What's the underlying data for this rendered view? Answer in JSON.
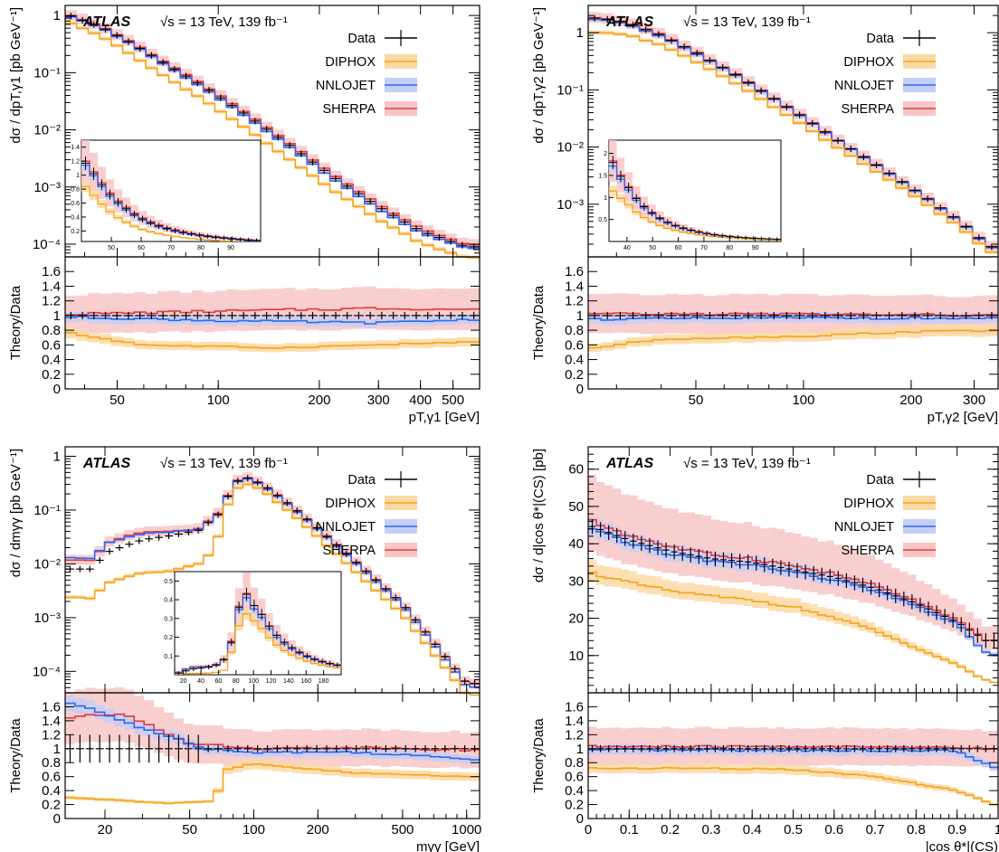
{
  "chart_data": [
    {
      "type": "line",
      "title": "",
      "atlas_label": "ATLAS",
      "energy_label": "√s = 13 TeV, 139 fb⁻¹",
      "ylabel": "dσ / dp_{T,γ1} [pb GeV⁻¹]",
      "xlabel": "p_{T,γ1} [GeV]",
      "ratio_ylabel": "Theory/Data",
      "xscale": "log",
      "yscale": "log",
      "xlim": [
        35,
        600
      ],
      "ylim": [
        6e-05,
        1.5
      ],
      "ratio_ylim": [
        0,
        1.8
      ],
      "legend_position": "top-right",
      "legend": [
        "Data",
        "DIPHOX",
        "NNLOJET",
        "SHERPA"
      ],
      "xticks": [
        {
          "v": 50,
          "t": "50"
        },
        {
          "v": 100,
          "t": "100"
        },
        {
          "v": 200,
          "t": "200"
        },
        {
          "v": 300,
          "t": "300"
        },
        {
          "v": 400,
          "t": "400"
        },
        {
          "v": 500,
          "t": "500"
        }
      ],
      "yticks": [
        {
          "v": 1,
          "t": "1"
        },
        {
          "v": 0.1,
          "t": "10⁻¹"
        },
        {
          "v": 0.01,
          "t": "10⁻²"
        },
        {
          "v": 0.001,
          "t": "10⁻³"
        },
        {
          "v": 0.0001,
          "t": "10⁻⁴"
        }
      ],
      "ratio_yticks": [
        "0",
        "0.2",
        "0.4",
        "0.6",
        "0.8",
        "1",
        "1.2",
        "1.4",
        "1.6"
      ],
      "data_points": [
        [
          36,
          1.0
        ],
        [
          45,
          0.62
        ],
        [
          55,
          0.33
        ],
        [
          70,
          0.14
        ],
        [
          90,
          0.058
        ],
        [
          120,
          0.019
        ],
        [
          160,
          0.0058
        ],
        [
          220,
          0.0015
        ],
        [
          300,
          0.00045
        ],
        [
          400,
          0.00017
        ],
        [
          550,
          9e-05
        ]
      ],
      "ratio_series": {
        "DIPHOX": [
          [
            36,
            0.76
          ],
          [
            60,
            0.6
          ],
          [
            150,
            0.56
          ],
          [
            400,
            0.62
          ],
          [
            600,
            0.64
          ]
        ],
        "NNLOJET": [
          [
            36,
            0.98
          ],
          [
            100,
            0.93
          ],
          [
            300,
            0.9
          ],
          [
            600,
            0.95
          ]
        ],
        "SHERPA": [
          [
            36,
            1.02
          ],
          [
            100,
            1.06
          ],
          [
            300,
            1.1
          ],
          [
            600,
            1.08
          ]
        ]
      },
      "inset": {
        "xlim": [
          40,
          100
        ],
        "ylim": [
          0.05,
          1.5
        ],
        "xticks": [
          "50",
          "60",
          "70",
          "80",
          "90"
        ],
        "yticks": [
          "0.2",
          "0.4",
          "0.6",
          "0.8",
          "1",
          "1.2",
          "1.4"
        ]
      }
    },
    {
      "type": "line",
      "title": "",
      "atlas_label": "ATLAS",
      "energy_label": "√s = 13 TeV, 139 fb⁻¹",
      "ylabel": "dσ / dp_{T,γ2} [pb GeV⁻¹]",
      "xlabel": "p_{T,γ2} [GeV]",
      "ratio_ylabel": "Theory/Data",
      "xscale": "log",
      "yscale": "log",
      "xlim": [
        25,
        350
      ],
      "ylim": [
        0.00012,
        3
      ],
      "ratio_ylim": [
        0,
        1.8
      ],
      "legend_position": "top-right",
      "legend": [
        "Data",
        "DIPHOX",
        "NNLOJET",
        "SHERPA"
      ],
      "xticks": [
        {
          "v": 50,
          "t": "50"
        },
        {
          "v": 100,
          "t": "100"
        },
        {
          "v": 200,
          "t": "200"
        },
        {
          "v": 300,
          "t": "300"
        }
      ],
      "yticks": [
        {
          "v": 1,
          "t": "1"
        },
        {
          "v": 0.1,
          "t": "10⁻¹"
        },
        {
          "v": 0.01,
          "t": "10⁻²"
        },
        {
          "v": 0.001,
          "t": "10⁻³"
        }
      ],
      "ratio_yticks": [
        "0",
        "0.2",
        "0.4",
        "0.6",
        "0.8",
        "1",
        "1.2",
        "1.4",
        "1.6"
      ],
      "data_points": [
        [
          27,
          1.8
        ],
        [
          32,
          1.5
        ],
        [
          40,
          0.9
        ],
        [
          50,
          0.45
        ],
        [
          65,
          0.18
        ],
        [
          80,
          0.08
        ],
        [
          100,
          0.033
        ],
        [
          130,
          0.011
        ],
        [
          170,
          0.0038
        ],
        [
          220,
          0.0013
        ],
        [
          280,
          0.00045
        ],
        [
          330,
          0.00018
        ]
      ],
      "ratio_series": {
        "DIPHOX": [
          [
            25,
            0.55
          ],
          [
            40,
            0.68
          ],
          [
            100,
            0.72
          ],
          [
            200,
            0.78
          ],
          [
            350,
            0.8
          ]
        ],
        "NNLOJET": [
          [
            25,
            0.95
          ],
          [
            100,
            0.97
          ],
          [
            350,
            0.96
          ]
        ],
        "SHERPA": [
          [
            25,
            1.02
          ],
          [
            100,
            1.02
          ],
          [
            350,
            1.0
          ]
        ]
      },
      "inset": {
        "xlim": [
          33,
          100
        ],
        "ylim": [
          0,
          2.3
        ],
        "xticks": [
          "40",
          "50",
          "60",
          "70",
          "80",
          "90"
        ],
        "yticks": [
          "0.5",
          "1",
          "1.5",
          "2"
        ]
      }
    },
    {
      "type": "line",
      "title": "",
      "atlas_label": "ATLAS",
      "energy_label": "√s = 13 TeV, 139 fb⁻¹",
      "ylabel": "dσ / dm_{γγ} [pb GeV⁻¹]",
      "xlabel": "m_{γγ} [GeV]",
      "ratio_ylabel": "Theory/Data",
      "xscale": "log",
      "yscale": "log",
      "xlim": [
        13,
        1150
      ],
      "ylim": [
        4e-05,
        1.5
      ],
      "ratio_ylim": [
        0,
        1.8
      ],
      "legend_position": "top-right",
      "legend": [
        "Data",
        "DIPHOX",
        "NNLOJET",
        "SHERPA"
      ],
      "xticks": [
        {
          "v": 20,
          "t": "20"
        },
        {
          "v": 50,
          "t": "50"
        },
        {
          "v": 100,
          "t": "100"
        },
        {
          "v": 200,
          "t": "200"
        },
        {
          "v": 500,
          "t": "500"
        },
        {
          "v": 1000,
          "t": "1000"
        }
      ],
      "yticks": [
        {
          "v": 1,
          "t": "1"
        },
        {
          "v": 0.1,
          "t": "10⁻¹"
        },
        {
          "v": 0.01,
          "t": "10⁻²"
        },
        {
          "v": 0.001,
          "t": "10⁻³"
        },
        {
          "v": 0.0001,
          "t": "10⁻⁴"
        }
      ],
      "ratio_yticks": [
        "0",
        "0.2",
        "0.4",
        "0.6",
        "0.8",
        "1",
        "1.2",
        "1.4",
        "1.6"
      ],
      "data_points": [
        [
          17,
          0.008
        ],
        [
          21,
          0.017
        ],
        [
          25,
          0.022
        ],
        [
          30,
          0.028
        ],
        [
          40,
          0.033
        ],
        [
          55,
          0.042
        ],
        [
          70,
          0.09
        ],
        [
          80,
          0.3
        ],
        [
          90,
          0.42
        ],
        [
          110,
          0.3
        ],
        [
          150,
          0.12
        ],
        [
          200,
          0.045
        ],
        [
          300,
          0.011
        ],
        [
          500,
          0.0018
        ],
        [
          800,
          0.00018
        ],
        [
          1000,
          6e-05
        ]
      ],
      "ratio_series": {
        "DIPHOX": [
          [
            14,
            0.3
          ],
          [
            40,
            0.22
          ],
          [
            65,
            0.25
          ],
          [
            75,
            0.7
          ],
          [
            100,
            0.78
          ],
          [
            300,
            0.65
          ],
          [
            1100,
            0.6
          ]
        ],
        "NNLOJET": [
          [
            14,
            1.65
          ],
          [
            30,
            1.3
          ],
          [
            60,
            1.0
          ],
          [
            100,
            0.95
          ],
          [
            300,
            0.95
          ],
          [
            1100,
            0.85
          ]
        ],
        "SHERPA": [
          [
            14,
            1.45
          ],
          [
            25,
            1.5
          ],
          [
            50,
            1.08
          ],
          [
            100,
            1.0
          ],
          [
            300,
            1.02
          ],
          [
            1100,
            0.98
          ]
        ]
      },
      "inset": {
        "xlim": [
          10,
          200
        ],
        "ylim": [
          0,
          0.55
        ],
        "xticks": [
          "20",
          "40",
          "60",
          "80",
          "100",
          "120",
          "140",
          "160",
          "180"
        ],
        "yticks": [
          "0.1",
          "0.2",
          "0.3",
          "0.4",
          "0.5"
        ]
      }
    },
    {
      "type": "line",
      "title": "",
      "atlas_label": "ATLAS",
      "energy_label": "√s = 13 TeV, 139 fb⁻¹",
      "ylabel": "dσ / d|cos θ*|^{(CS)} [pb]",
      "xlabel": "|cos θ*|^{(CS)}",
      "ratio_ylabel": "Theory/Data",
      "xscale": "linear",
      "yscale": "linear",
      "xlim": [
        0,
        1
      ],
      "ylim": [
        0,
        66
      ],
      "ratio_ylim": [
        0,
        1.8
      ],
      "legend_position": "top-right",
      "legend": [
        "Data",
        "DIPHOX",
        "NNLOJET",
        "SHERPA"
      ],
      "xticks": [
        {
          "v": 0,
          "t": "0"
        },
        {
          "v": 0.1,
          "t": "0.1"
        },
        {
          "v": 0.2,
          "t": "0.2"
        },
        {
          "v": 0.3,
          "t": "0.3"
        },
        {
          "v": 0.4,
          "t": "0.4"
        },
        {
          "v": 0.5,
          "t": "0.5"
        },
        {
          "v": 0.6,
          "t": "0.6"
        },
        {
          "v": 0.7,
          "t": "0.7"
        },
        {
          "v": 0.8,
          "t": "0.8"
        },
        {
          "v": 0.9,
          "t": "0.9"
        },
        {
          "v": 1,
          "t": "1"
        }
      ],
      "yticks": [
        {
          "v": 10,
          "t": "10"
        },
        {
          "v": 20,
          "t": "20"
        },
        {
          "v": 30,
          "t": "30"
        },
        {
          "v": 40,
          "t": "40"
        },
        {
          "v": 50,
          "t": "50"
        },
        {
          "v": 60,
          "t": "60"
        }
      ],
      "ratio_yticks": [
        "0",
        "0.2",
        "0.4",
        "0.6",
        "0.8",
        "1",
        "1.2",
        "1.4",
        "1.6"
      ],
      "data_points": [
        [
          0.0,
          45
        ],
        [
          0.1,
          41
        ],
        [
          0.2,
          38
        ],
        [
          0.3,
          36
        ],
        [
          0.4,
          35
        ],
        [
          0.5,
          33
        ],
        [
          0.6,
          31
        ],
        [
          0.7,
          28
        ],
        [
          0.8,
          24
        ],
        [
          0.9,
          19
        ],
        [
          0.97,
          14
        ]
      ],
      "ratio_series": {
        "DIPHOX": [
          [
            0,
            0.72
          ],
          [
            0.3,
            0.72
          ],
          [
            0.5,
            0.7
          ],
          [
            0.7,
            0.6
          ],
          [
            0.9,
            0.4
          ],
          [
            1,
            0.18
          ]
        ],
        "NNLOJET": [
          [
            0,
            0.98
          ],
          [
            0.5,
            0.98
          ],
          [
            0.9,
            0.97
          ],
          [
            1,
            0.7
          ]
        ],
        "SHERPA": [
          [
            0,
            1.03
          ],
          [
            0.5,
            1.03
          ],
          [
            0.9,
            1.02
          ],
          [
            1,
            1.0
          ]
        ]
      }
    }
  ],
  "colors": {
    "data": "#000000",
    "diphox": "#f5a31a",
    "nnlojet": "#3366ee",
    "sherpa": "#e8383b",
    "diphox_band": "#fbd9a4",
    "nnlojet_band": "#c4cff7",
    "sherpa_band": "#f8c6c6"
  }
}
